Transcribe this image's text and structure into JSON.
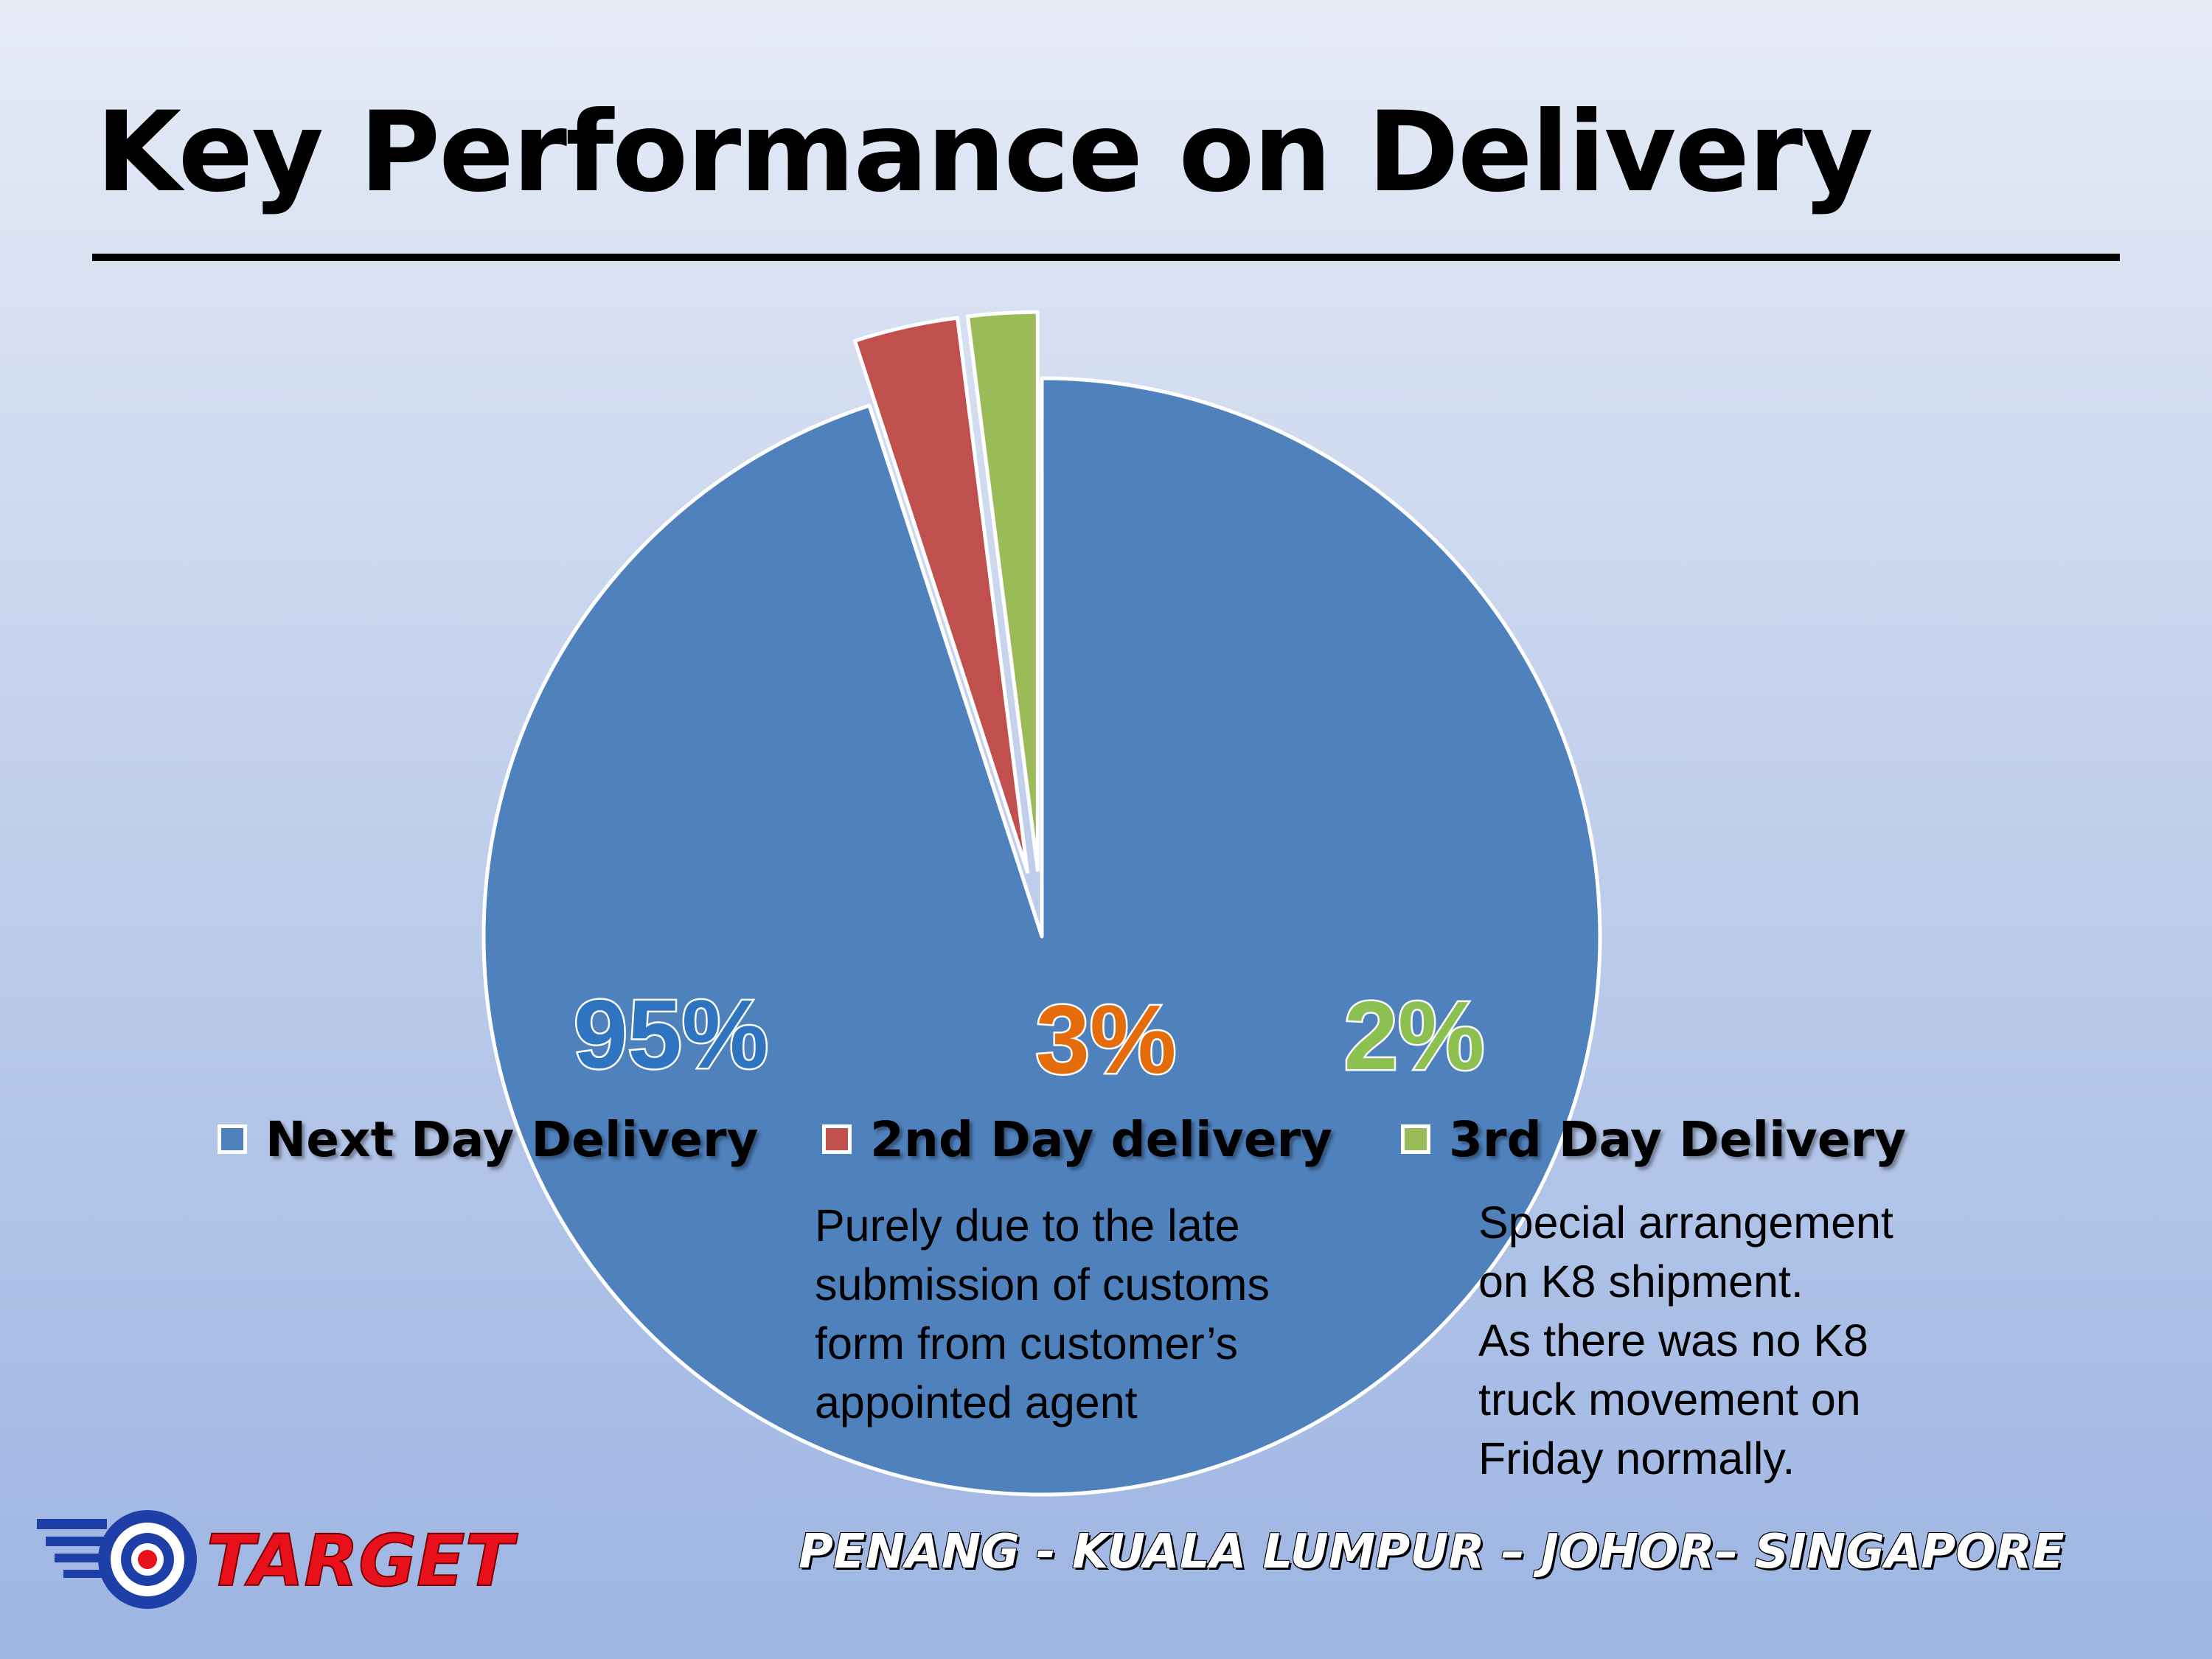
{
  "slide": {
    "title": "Key Performance on Delivery",
    "footer": "PENANG - KUALA LUMPUR – JOHOR– SINGAPORE",
    "logo_text": "TARGET"
  },
  "chart_data": {
    "type": "pie",
    "title": "",
    "slices": [
      {
        "name": "Next Day Delivery",
        "value": 95,
        "label": "95%",
        "color": "#4f81bd",
        "label_color": "#2e74c0"
      },
      {
        "name": "2nd Day delivery",
        "value": 3,
        "label": "3%",
        "color": "#c0504d",
        "label_color": "#e46c0a"
      },
      {
        "name": "3rd Day Delivery",
        "value": 2,
        "label": "2%",
        "color": "#9bbb59",
        "label_color": "#8cc152"
      }
    ],
    "legend_position": "bottom"
  },
  "notes": {
    "second_day": [
      "Purely due to the late",
      "submission of customs",
      "form from customer’s",
      "appointed agent"
    ],
    "third_day": [
      "Special arrangement",
      "on K8 shipment.",
      "As there was no K8",
      "truck movement on",
      "Friday normally."
    ]
  }
}
